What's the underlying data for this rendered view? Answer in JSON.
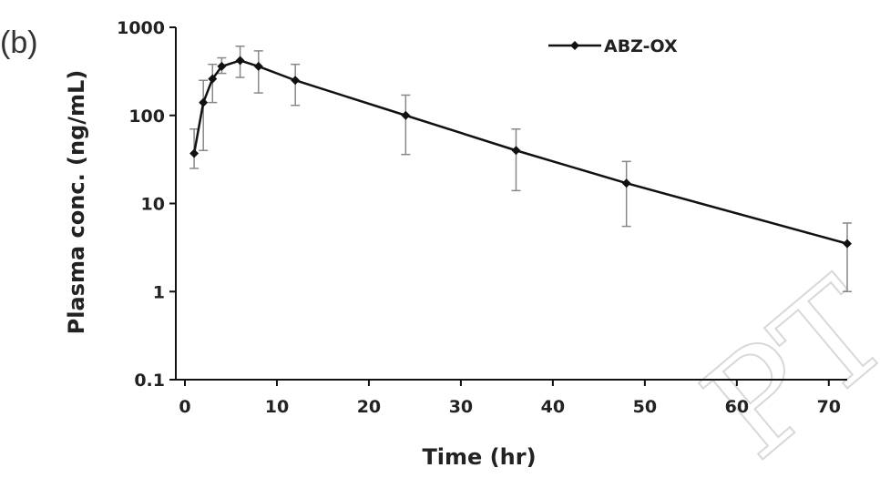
{
  "panel_label": "(b)",
  "watermark": "PT",
  "chart_data": {
    "type": "line",
    "title": "",
    "xlabel": "Time (hr)",
    "ylabel": "Plasma conc. (ng/mL)",
    "xlim": [
      0,
      72
    ],
    "ylim": [
      0.1,
      1000
    ],
    "yscale": "log",
    "x_ticks": [
      0,
      10,
      20,
      30,
      40,
      50,
      60,
      70
    ],
    "y_ticks": [
      0.1,
      1,
      10,
      100,
      1000
    ],
    "y_tick_labels": [
      "0.1",
      "1",
      "10",
      "100",
      "1000"
    ],
    "grid": false,
    "legend_position": "top-right",
    "colors": {
      "line": "#111111",
      "error_bar": "#888888"
    },
    "series": [
      {
        "name": "ABZ-OX",
        "x": [
          1,
          2,
          3,
          4,
          6,
          8,
          12,
          24,
          36,
          48,
          72
        ],
        "y": [
          37,
          140,
          260,
          360,
          420,
          360,
          250,
          100,
          40,
          17,
          3.5
        ],
        "err_high": [
          70,
          250,
          380,
          450,
          610,
          540,
          380,
          170,
          70,
          30,
          6
        ],
        "err_low": [
          25,
          40,
          140,
          300,
          270,
          180,
          130,
          36,
          14,
          5.5,
          1.0
        ]
      }
    ]
  }
}
